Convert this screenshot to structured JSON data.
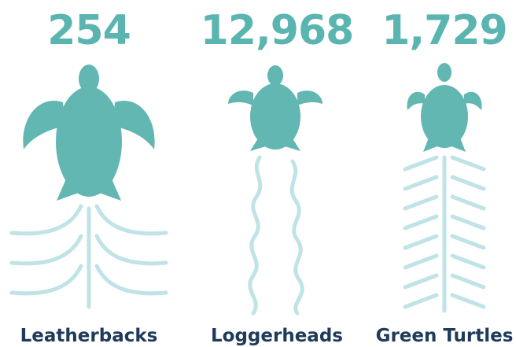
{
  "items": [
    {
      "count": "254",
      "label": "Leatherbacks"
    },
    {
      "count": "12,968",
      "label": "Loggerheads"
    },
    {
      "count": "1,729",
      "label": "Green Turtles"
    }
  ]
}
